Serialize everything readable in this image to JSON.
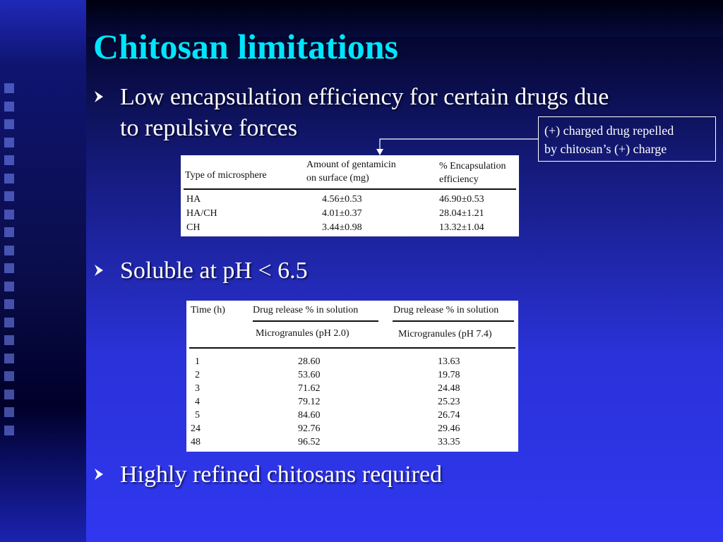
{
  "slide": {
    "title": "Chitosan limitations",
    "bullets": [
      {
        "text_line1": "Low encapsulation efficiency for certain drugs due",
        "text_line2": "to repulsive forces"
      },
      {
        "text": "Soluble at pH < 6.5"
      },
      {
        "text": "Highly refined chitosans required"
      }
    ],
    "callout": {
      "line1": "(+) charged drug repelled",
      "line2": "by chitosan’s (+) charge"
    }
  },
  "table1": {
    "headers": {
      "col1": "Type of microsphere",
      "col2_line1": "Amount of gentamicin",
      "col2_line2": "on surface (mg)",
      "col3_line1": "% Encapsulation",
      "col3_line2": "efficiency"
    },
    "rows": [
      {
        "type": "HA",
        "amount": "4.56±0.53",
        "efficiency": "46.90±0.53"
      },
      {
        "type": "HA/CH",
        "amount": "4.01±0.37",
        "efficiency": "28.04±1.21"
      },
      {
        "type": "CH",
        "amount": "3.44±0.98",
        "efficiency": "13.32±1.04"
      }
    ]
  },
  "table2": {
    "headers": {
      "col1": "Time (h)",
      "col2": "Drug release % in solution",
      "col3": "Drug release % in solution",
      "sub2": "Microgranules (pH 2.0)",
      "sub3": "Microgranules (pH 7.4)"
    },
    "rows": [
      {
        "time": "1",
        "ph2": "28.60",
        "ph74": "13.63"
      },
      {
        "time": "2",
        "ph2": "53.60",
        "ph74": "19.78"
      },
      {
        "time": "3",
        "ph2": "71.62",
        "ph74": "24.48"
      },
      {
        "time": "4",
        "ph2": "79.12",
        "ph74": "25.23"
      },
      {
        "time": "5",
        "ph2": "84.60",
        "ph74": "26.74"
      },
      {
        "time": "24",
        "ph2": "92.76",
        "ph74": "29.46"
      },
      {
        "time": "48",
        "ph2": "96.52",
        "ph74": "33.35"
      }
    ]
  },
  "colors": {
    "title": "#00e5ff",
    "bullet_text": "#ffffff",
    "background": "#2a32d8"
  }
}
